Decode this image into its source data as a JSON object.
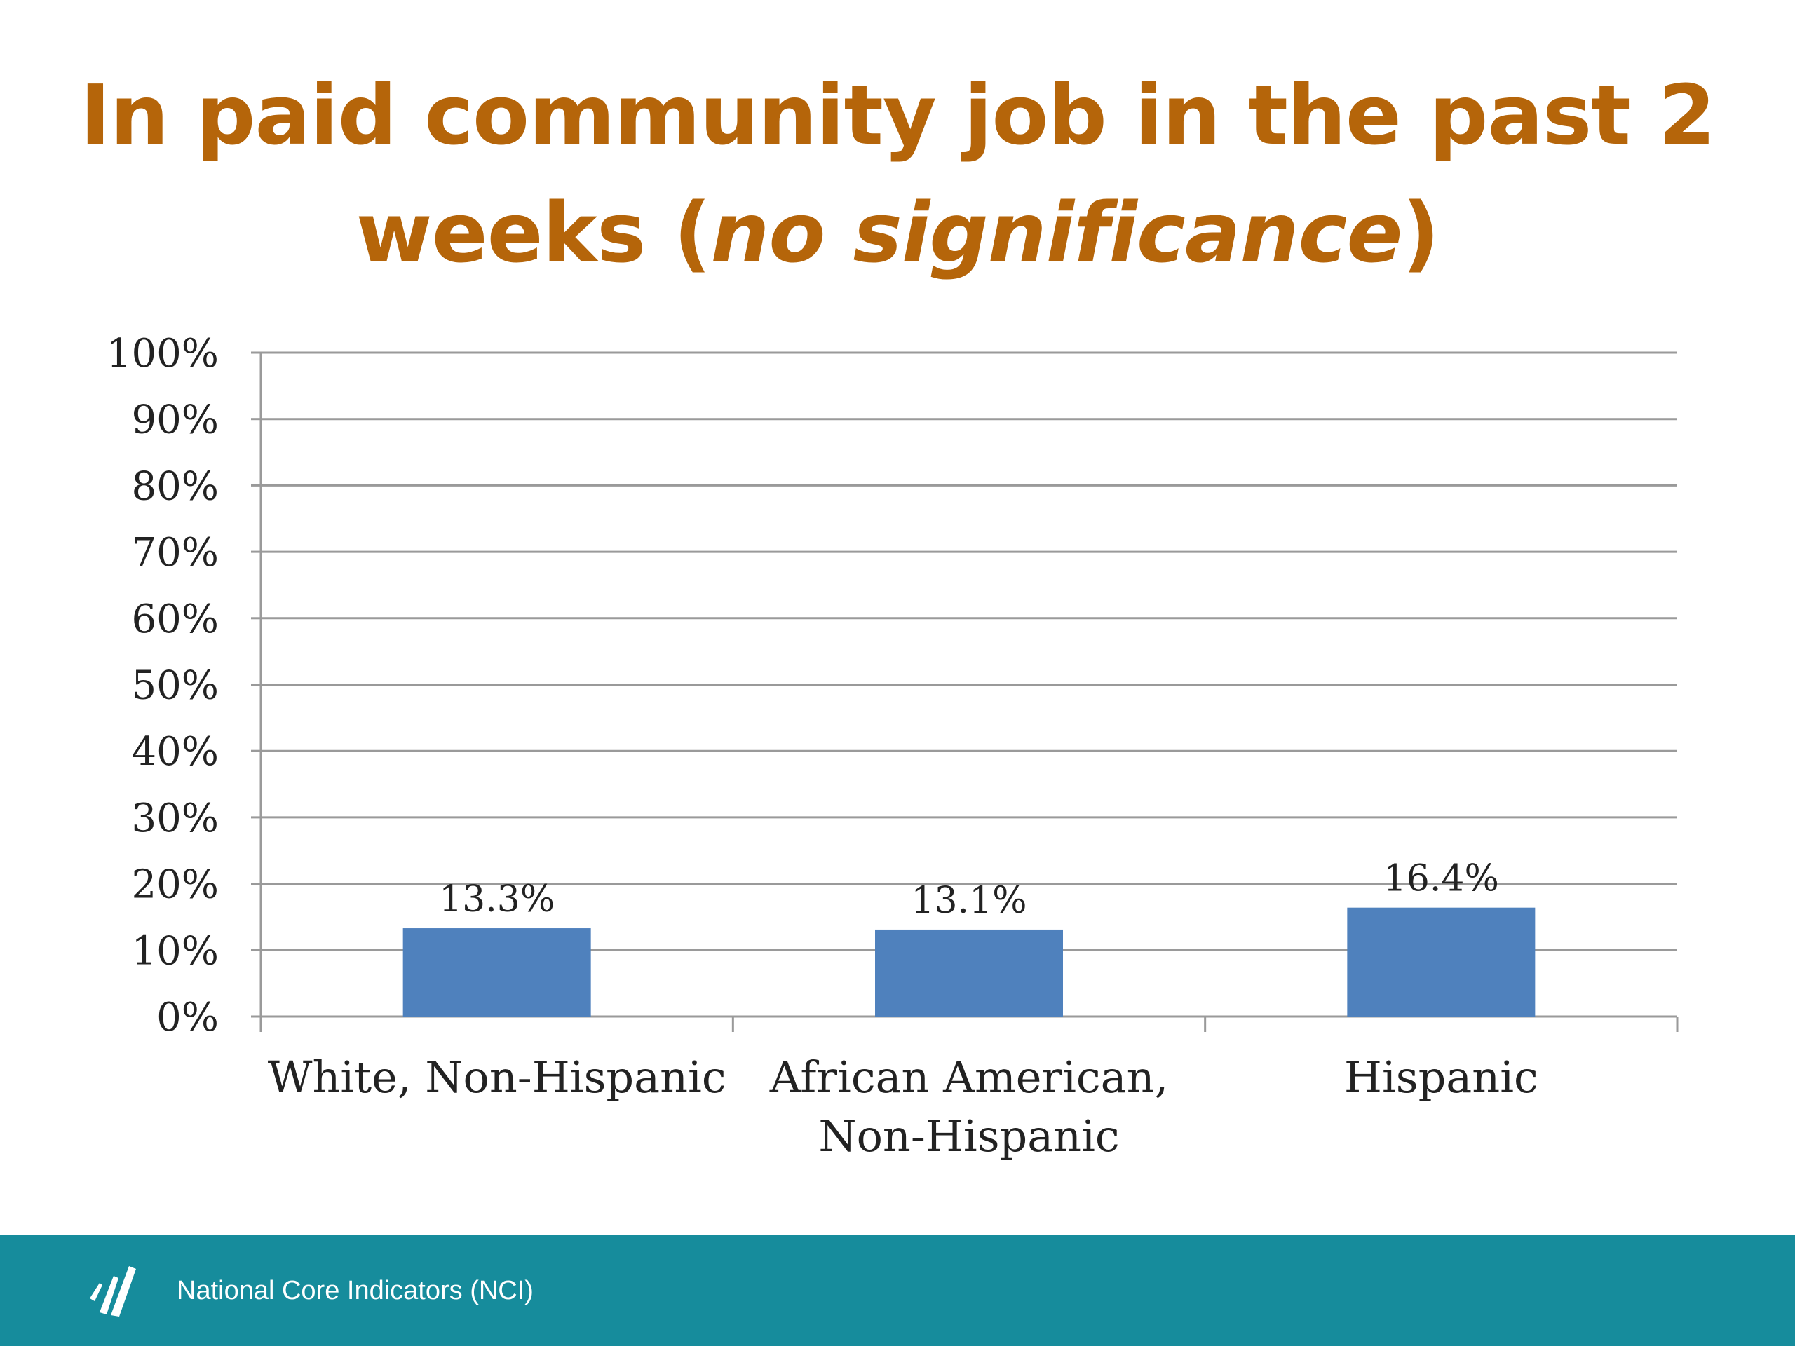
{
  "slide": {
    "title_line1": "In paid community job in the past 2",
    "title_line2_prefix": "weeks (",
    "title_line2_italic": "no significance",
    "title_line2_suffix": ")"
  },
  "chart_data": {
    "type": "bar",
    "title": "",
    "xlabel": "",
    "ylabel": "",
    "categories": [
      [
        "White, Non-Hispanic"
      ],
      [
        "African American,",
        "Non-Hispanic"
      ],
      [
        "Hispanic"
      ]
    ],
    "values": [
      13.3,
      13.1,
      16.4
    ],
    "data_labels": [
      "13.3%",
      "13.1%",
      "16.4%"
    ],
    "ylim": [
      0,
      100
    ],
    "yticks": [
      0,
      10,
      20,
      30,
      40,
      50,
      60,
      70,
      80,
      90,
      100
    ],
    "ytick_labels": [
      "0%",
      "10%",
      "20%",
      "30%",
      "40%",
      "50%",
      "60%",
      "70%",
      "80%",
      "90%",
      "100%"
    ],
    "grid": true,
    "legend": "none",
    "bar_color": "#4f81bd",
    "grid_color": "#9a9a9a"
  },
  "footer": {
    "text": "National Core Indicators (NCI)",
    "logo_icon": "nci-logo-icon",
    "bar_color": "#168c9c"
  }
}
